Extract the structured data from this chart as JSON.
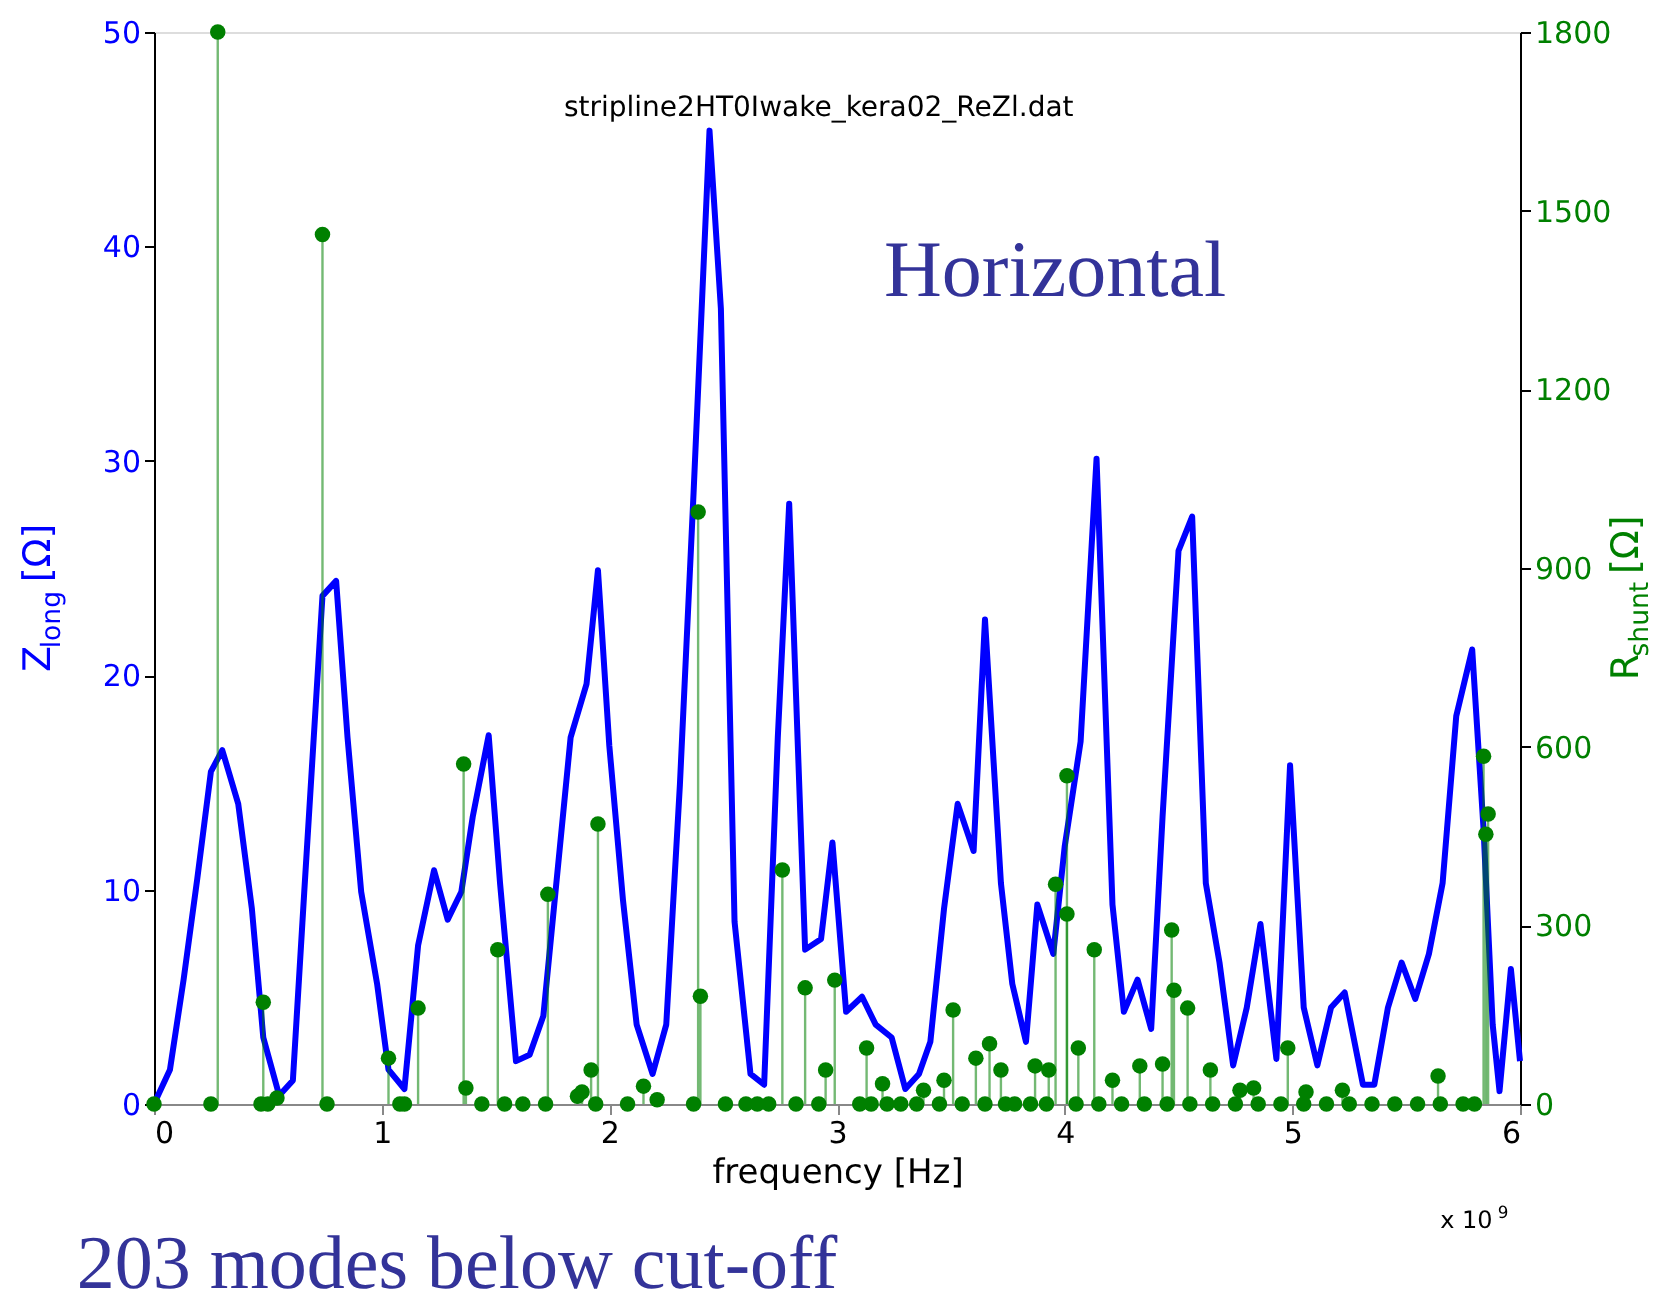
{
  "chart_data": {
    "type": "line",
    "title": "stripline2HT0Iwake_kera02_ReZl.dat",
    "xlabel": "frequency [Hz]",
    "ylabel": "Z$_{long}$ [Ω]",
    "y2label": "R$_{shunt}$ [Ω]",
    "annotations": [
      "Horizontal",
      "203 modes below cut-off",
      "x 10$^{9}$"
    ],
    "xlim": [
      0,
      6
    ],
    "xticks": [
      0,
      1,
      2,
      3,
      4,
      5,
      6
    ],
    "ylim": [
      0,
      50
    ],
    "yticks": [
      0,
      10,
      20,
      30,
      40,
      50
    ],
    "y2lim": [
      0,
      1800
    ],
    "y2ticks": [
      0,
      300,
      600,
      900,
      1200,
      1500,
      1800
    ],
    "grid": false,
    "series": [
      {
        "color": "#0000ff",
        "marker": "none",
        "x": [
          0,
          0.07,
          0.13,
          0.19,
          0.25,
          0.3,
          0.37,
          0.43,
          0.48,
          0.55,
          0.61,
          0.66,
          0.74,
          0.8,
          0.85,
          0.91,
          0.98,
          1.03,
          1.1,
          1.16,
          1.23,
          1.29,
          1.35,
          1.4,
          1.47,
          1.52,
          1.59,
          1.65,
          1.71,
          1.83,
          1.9,
          1.95,
          2.0,
          2.06,
          2.12,
          2.19,
          2.25,
          2.31,
          2.37,
          2.44,
          2.49,
          2.55,
          2.62,
          2.68,
          2.74,
          2.79,
          2.86,
          2.93,
          2.98,
          3.04,
          3.11,
          3.17,
          3.24,
          3.3,
          3.36,
          3.41,
          3.47,
          3.53,
          3.6,
          3.65,
          3.72,
          3.77,
          3.83,
          3.88,
          3.95,
          4.0,
          4.07,
          4.14,
          4.21,
          4.26,
          4.32,
          4.38,
          4.43,
          4.5,
          4.56,
          4.62,
          4.68,
          4.74,
          4.8,
          4.86,
          4.93,
          4.99,
          5.05,
          5.11,
          5.17,
          5.23,
          5.31,
          5.36,
          5.42,
          5.48,
          5.54,
          5.6,
          5.66,
          5.72,
          5.79,
          5.84,
          5.88,
          5.91,
          5.96,
          6.0
        ],
        "values": [
          0,
          1.6,
          5.8,
          10.5,
          15.5,
          16.5,
          14.0,
          9.1,
          3.1,
          0.4,
          1.1,
          9.9,
          23.7,
          24.4,
          17.1,
          9.9,
          5.6,
          1.6,
          0.7,
          7.4,
          10.9,
          8.6,
          9.9,
          13.4,
          17.2,
          10.3,
          2.0,
          2.3,
          4.1,
          17.1,
          19.6,
          24.9,
          16.7,
          9.5,
          3.7,
          1.4,
          3.7,
          14.9,
          28.5,
          45.4,
          37.1,
          8.5,
          1.4,
          0.9,
          17.1,
          28.0,
          7.2,
          7.7,
          12.2,
          4.3,
          5.0,
          3.7,
          3.1,
          0.7,
          1.4,
          2.9,
          9.1,
          14.0,
          11.8,
          22.6,
          10.3,
          5.6,
          2.9,
          9.3,
          7.0,
          12.0,
          16.9,
          30.1,
          9.3,
          4.3,
          5.8,
          3.5,
          13.4,
          25.8,
          27.4,
          10.3,
          6.6,
          1.8,
          4.5,
          8.4,
          2.1,
          15.8,
          4.5,
          1.8,
          4.5,
          5.2,
          0.9,
          0.9,
          4.5,
          6.6,
          4.9,
          7.0,
          10.3,
          18.1,
          21.2,
          12.8,
          3.7,
          0.6,
          6.3,
          2.0
        ]
      },
      {
        "type": "lollipop",
        "axis": "y2",
        "color": "#008000",
        "marker": "circle",
        "x": [
          0,
          0.25,
          0.28,
          0.47,
          0.48,
          0.5,
          0.54,
          0.74,
          0.76,
          1.03,
          1.08,
          1.1,
          1.16,
          1.36,
          1.37,
          1.44,
          1.51,
          1.54,
          1.62,
          1.72,
          1.73,
          1.86,
          1.88,
          1.92,
          1.95,
          1.94,
          2.08,
          2.15,
          2.21,
          2.37,
          2.39,
          2.4,
          2.51,
          2.6,
          2.65,
          2.7,
          2.76,
          2.82,
          2.86,
          2.92,
          2.95,
          2.99,
          3.1,
          3.13,
          3.15,
          3.2,
          3.22,
          3.28,
          3.35,
          3.38,
          3.45,
          3.47,
          3.51,
          3.55,
          3.61,
          3.65,
          3.67,
          3.72,
          3.74,
          3.78,
          3.85,
          3.87,
          3.92,
          3.93,
          3.96,
          4.01,
          4.01,
          4.05,
          4.06,
          4.13,
          4.15,
          4.21,
          4.25,
          4.33,
          4.35,
          4.43,
          4.45,
          4.47,
          4.48,
          4.54,
          4.55,
          4.64,
          4.65,
          4.75,
          4.77,
          4.83,
          4.85,
          4.95,
          4.98,
          5.05,
          5.06,
          5.15,
          5.22,
          5.25,
          5.35,
          5.45,
          5.55,
          5.64,
          5.65,
          5.75,
          5.8,
          5.84,
          5.85,
          5.86
        ],
        "values": [
          0,
          0,
          1800,
          0,
          171,
          0,
          10,
          1460,
          0,
          77,
          0,
          0,
          161,
          571,
          27,
          0,
          259,
          0,
          0,
          0,
          352,
          13,
          20,
          57,
          470,
          0,
          0,
          30,
          7,
          0,
          994,
          181,
          0,
          0,
          0,
          0,
          393,
          0,
          195,
          0,
          57,
          208,
          0,
          94,
          0,
          34,
          0,
          0,
          0,
          23,
          0,
          40,
          158,
          0,
          77,
          0,
          101,
          57,
          0,
          0,
          0,
          64,
          0,
          57,
          369,
          551,
          319,
          0,
          94,
          259,
          0,
          40,
          0,
          64,
          0,
          67,
          0,
          292,
          191,
          161,
          0,
          57,
          0,
          0,
          23,
          27,
          0,
          0,
          94,
          0,
          20,
          0,
          23,
          0,
          0,
          0,
          0,
          47,
          0,
          0,
          0,
          584,
          453,
          487
        ]
      }
    ]
  }
}
